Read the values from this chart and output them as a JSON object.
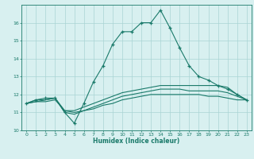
{
  "xlabel": "Humidex (Indice chaleur)",
  "x_values": [
    0,
    1,
    2,
    3,
    4,
    5,
    6,
    7,
    8,
    9,
    10,
    11,
    12,
    13,
    14,
    15,
    16,
    17,
    18,
    19,
    20,
    21,
    22,
    23
  ],
  "line1": [
    11.5,
    11.7,
    11.8,
    11.8,
    11.0,
    10.4,
    11.5,
    12.7,
    13.6,
    14.8,
    15.5,
    15.5,
    16.0,
    16.0,
    16.7,
    15.7,
    14.6,
    13.6,
    13.0,
    12.8,
    12.5,
    12.3,
    12.0,
    11.7
  ],
  "line2": [
    11.5,
    11.7,
    11.7,
    11.8,
    11.1,
    11.1,
    11.3,
    11.5,
    11.7,
    11.9,
    12.1,
    12.2,
    12.3,
    12.4,
    12.5,
    12.5,
    12.5,
    12.5,
    12.5,
    12.5,
    12.5,
    12.4,
    12.0,
    11.7
  ],
  "line3": [
    11.5,
    11.6,
    11.7,
    11.8,
    11.0,
    10.9,
    11.1,
    11.3,
    11.5,
    11.7,
    11.9,
    12.0,
    12.1,
    12.2,
    12.3,
    12.3,
    12.3,
    12.2,
    12.2,
    12.2,
    12.2,
    12.1,
    11.9,
    11.7
  ],
  "line4": [
    11.5,
    11.6,
    11.6,
    11.7,
    11.1,
    11.0,
    11.1,
    11.2,
    11.4,
    11.5,
    11.7,
    11.8,
    11.9,
    12.0,
    12.0,
    12.0,
    12.0,
    12.0,
    12.0,
    11.9,
    11.9,
    11.8,
    11.7,
    11.7
  ],
  "line_color": "#1a7a6a",
  "bg_color": "#d8f0f0",
  "grid_color": "#aad4d4",
  "ylim": [
    10,
    17
  ],
  "yticks": [
    10,
    11,
    12,
    13,
    14,
    15,
    16
  ],
  "xticks": [
    0,
    1,
    2,
    3,
    4,
    5,
    6,
    7,
    8,
    9,
    10,
    11,
    12,
    13,
    14,
    15,
    16,
    17,
    18,
    19,
    20,
    21,
    22,
    23
  ]
}
